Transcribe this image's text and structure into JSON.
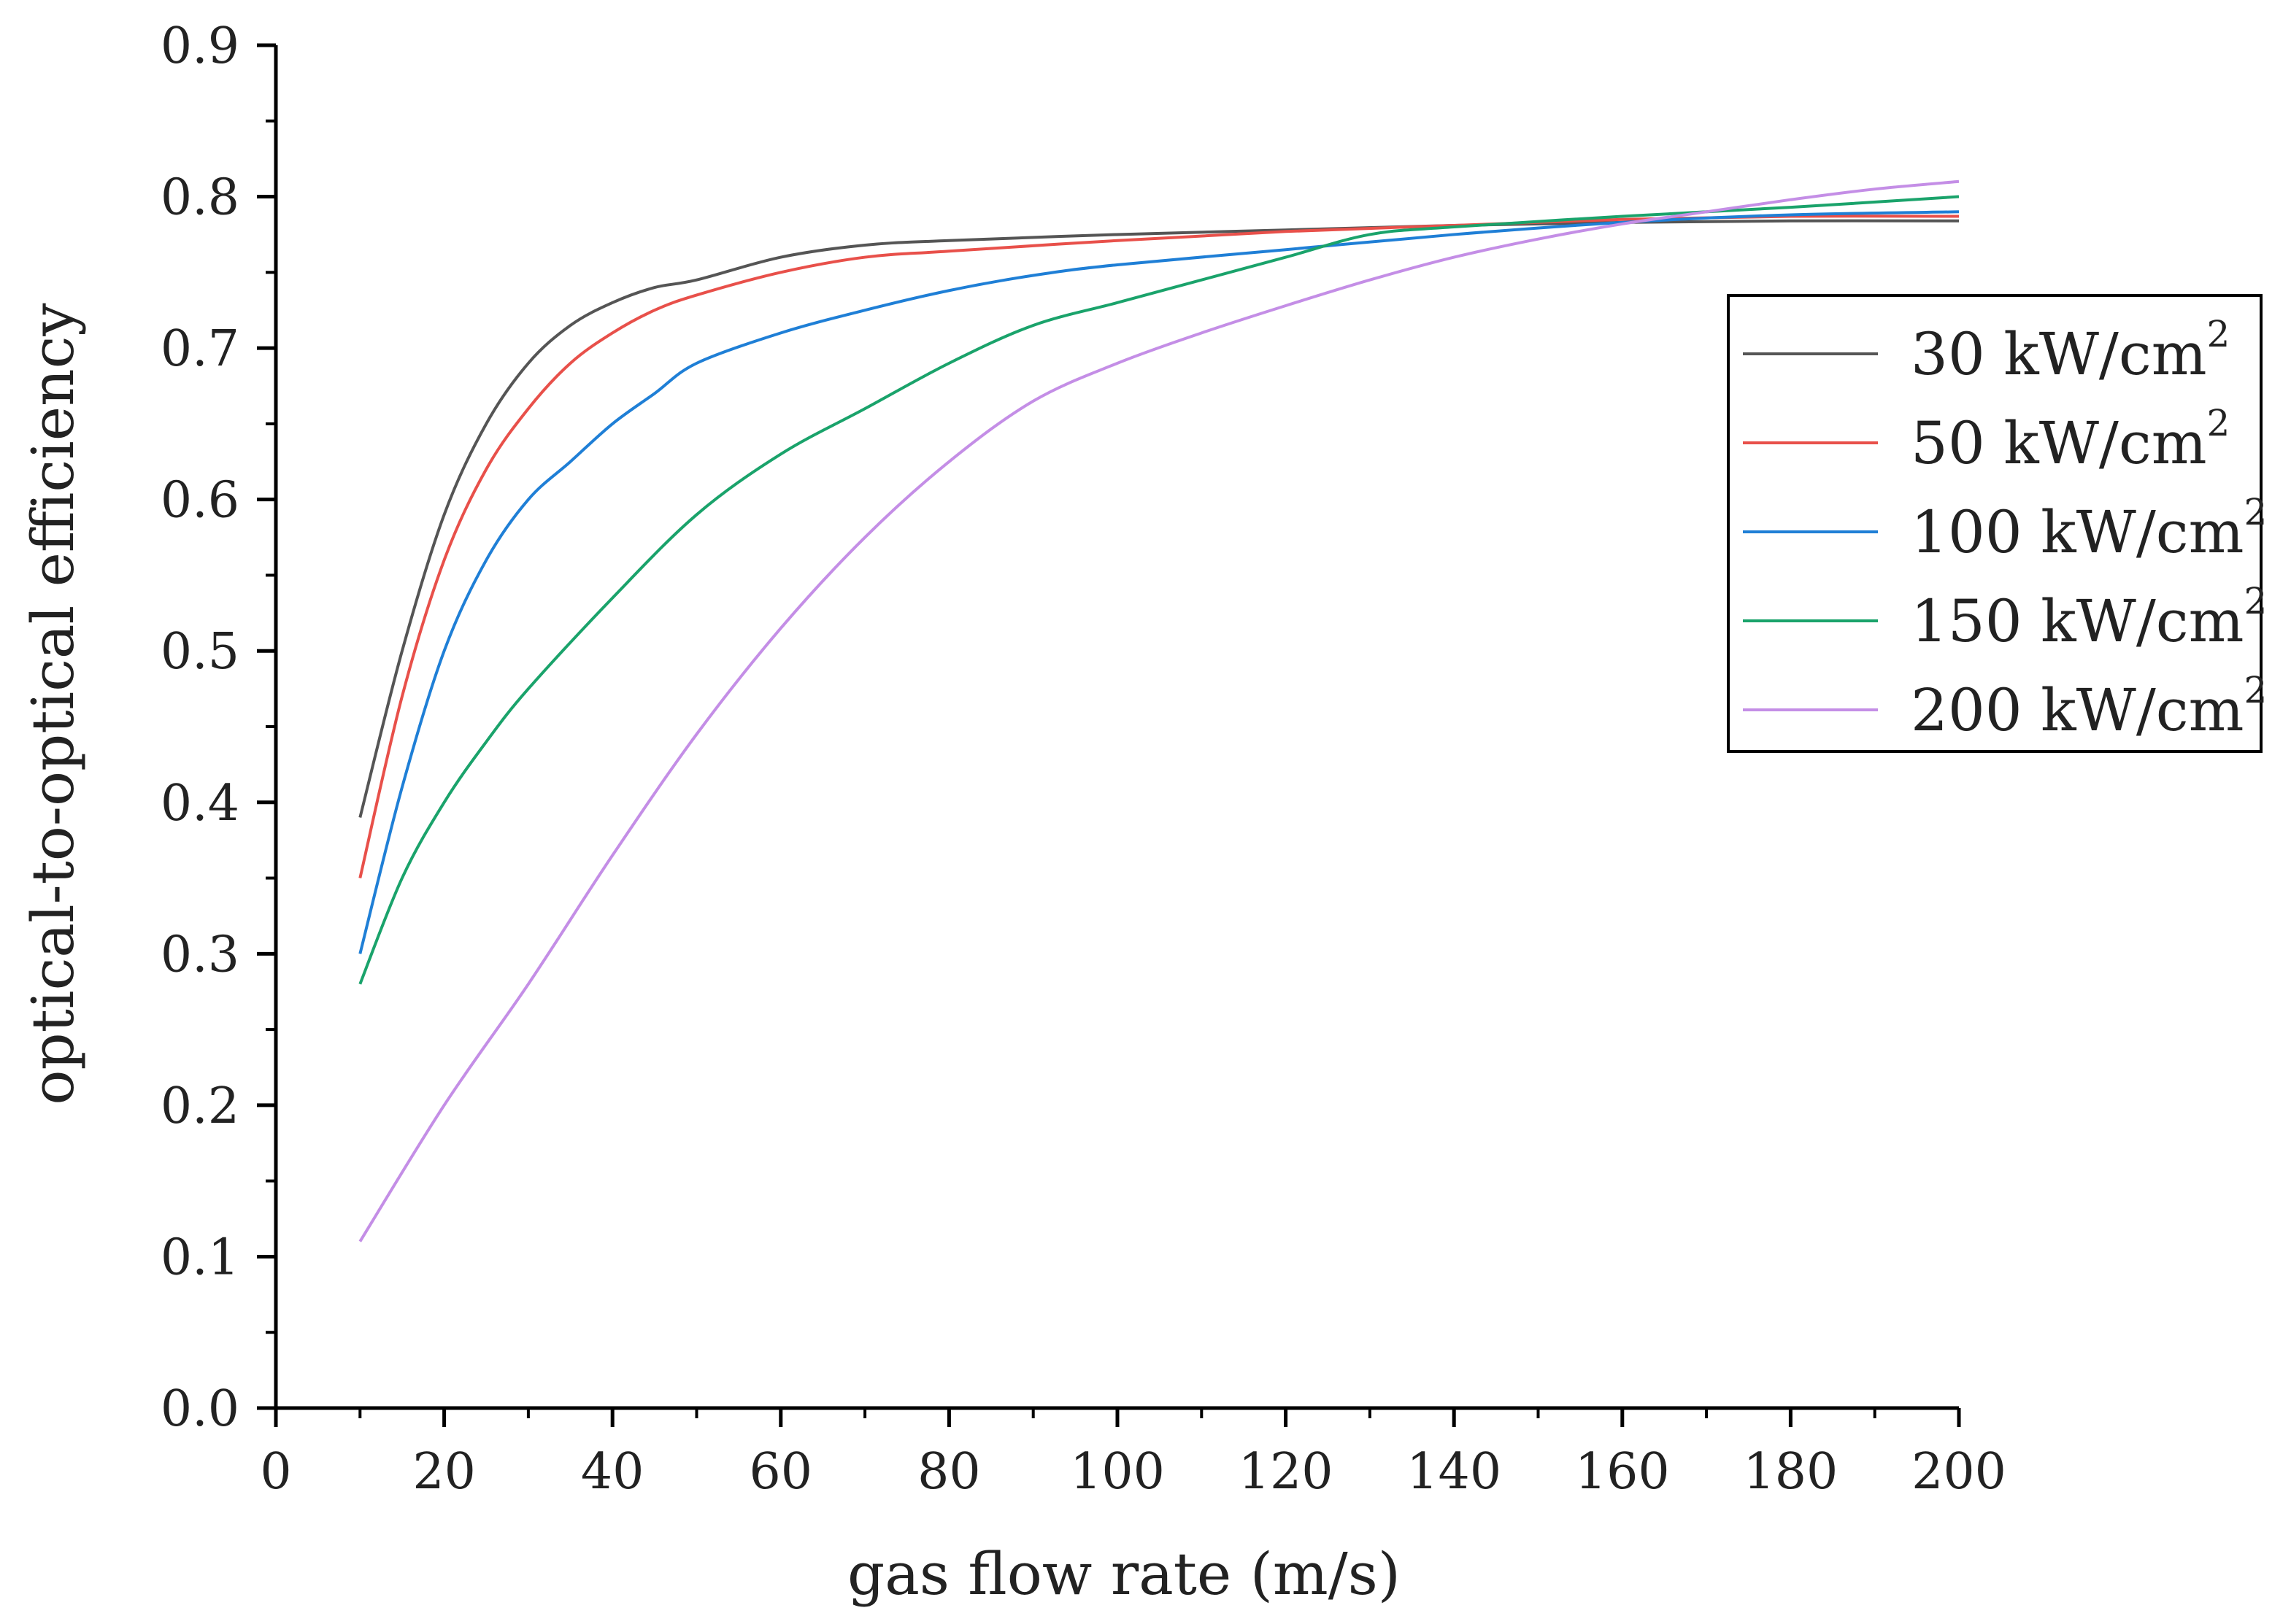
{
  "chart_data": {
    "type": "line",
    "title": "",
    "xlabel": "gas flow rate (m/s)",
    "ylabel": "optical-to-optical efficiency",
    "xlim": [
      0,
      200
    ],
    "ylim": [
      0.0,
      0.9
    ],
    "x_ticks": [
      0,
      20,
      40,
      60,
      80,
      100,
      120,
      140,
      160,
      180,
      200
    ],
    "x_tick_labels": [
      "0",
      "20",
      "40",
      "60",
      "80",
      "100",
      "120",
      "140",
      "160",
      "180",
      "200"
    ],
    "y_ticks": [
      0.0,
      0.1,
      0.2,
      0.3,
      0.4,
      0.5,
      0.6,
      0.7,
      0.8,
      0.9
    ],
    "y_tick_labels": [
      "0.0",
      "0.1",
      "0.2",
      "0.3",
      "0.4",
      "0.5",
      "0.6",
      "0.7",
      "0.8",
      "0.9"
    ],
    "grid": false,
    "legend_position": "upper-right",
    "series": [
      {
        "name": "30 kW/cm",
        "name_superscript": "2",
        "color": "#555555",
        "x": [
          10,
          15,
          20,
          25,
          30,
          35,
          40,
          45,
          50,
          60,
          70,
          80,
          100,
          120,
          140,
          160,
          180,
          200
        ],
        "y": [
          0.39,
          0.5,
          0.59,
          0.65,
          0.69,
          0.715,
          0.73,
          0.74,
          0.745,
          0.76,
          0.768,
          0.771,
          0.775,
          0.778,
          0.781,
          0.783,
          0.784,
          0.784
        ]
      },
      {
        "name": "50 kW/cm",
        "name_superscript": "2",
        "color": "#e8504a",
        "x": [
          10,
          15,
          20,
          25,
          30,
          35,
          40,
          45,
          50,
          60,
          70,
          80,
          100,
          120,
          140,
          160,
          180,
          200
        ],
        "y": [
          0.35,
          0.47,
          0.56,
          0.62,
          0.66,
          0.69,
          0.71,
          0.725,
          0.735,
          0.75,
          0.76,
          0.764,
          0.771,
          0.777,
          0.781,
          0.785,
          0.787,
          0.787
        ]
      },
      {
        "name": "100 kW/cm",
        "name_superscript": "2",
        "color": "#1f7fd6",
        "x": [
          10,
          15,
          20,
          25,
          30,
          35,
          40,
          45,
          50,
          60,
          70,
          80,
          90,
          100,
          120,
          140,
          160,
          180,
          200
        ],
        "y": [
          0.3,
          0.41,
          0.5,
          0.56,
          0.6,
          0.625,
          0.65,
          0.67,
          0.69,
          0.71,
          0.725,
          0.738,
          0.748,
          0.755,
          0.765,
          0.775,
          0.783,
          0.788,
          0.79
        ]
      },
      {
        "name": "150 kW/cm",
        "name_superscript": "2",
        "color": "#1aa36b",
        "x": [
          10,
          15,
          20,
          25,
          30,
          40,
          50,
          60,
          70,
          80,
          90,
          100,
          110,
          120,
          130,
          140,
          160,
          180,
          200
        ],
        "y": [
          0.28,
          0.35,
          0.4,
          0.44,
          0.475,
          0.535,
          0.59,
          0.63,
          0.66,
          0.69,
          0.715,
          0.73,
          0.745,
          0.76,
          0.775,
          0.78,
          0.787,
          0.793,
          0.8
        ]
      },
      {
        "name": "200 kW/cm",
        "name_superscript": "2",
        "color": "#c48ee6",
        "x": [
          10,
          20,
          30,
          40,
          50,
          60,
          70,
          80,
          90,
          100,
          110,
          120,
          130,
          140,
          150,
          160,
          170,
          180,
          190,
          200
        ],
        "y": [
          0.11,
          0.2,
          0.28,
          0.365,
          0.445,
          0.515,
          0.575,
          0.625,
          0.665,
          0.69,
          0.71,
          0.728,
          0.745,
          0.76,
          0.772,
          0.782,
          0.79,
          0.798,
          0.805,
          0.81
        ]
      }
    ]
  }
}
